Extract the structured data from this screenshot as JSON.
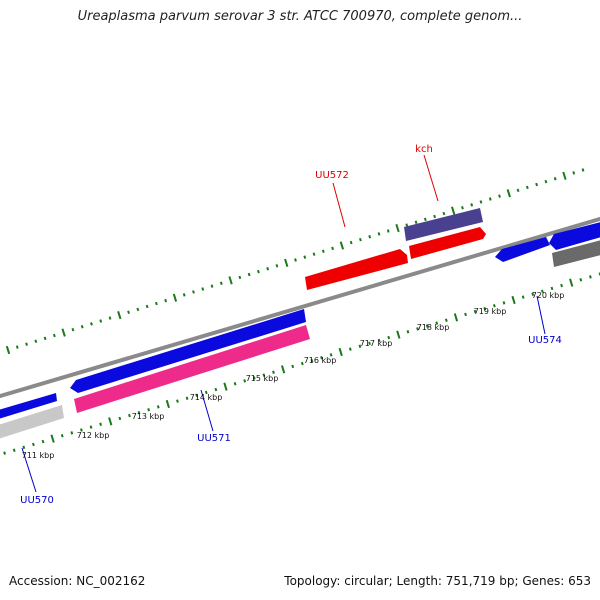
{
  "title": "Ureaplasma parvum serovar 3 str. ATCC 700970, complete genom...",
  "accession_line": "Accession: NC_002162",
  "summary_line": "Topology: circular; Length: 751,719 bp; Genes: 653",
  "tick_labels": [
    "711 kbp",
    "712 kbp",
    "713 kbp",
    "714 kbp",
    "715 kbp",
    "716 kbp",
    "717 kbp",
    "718 kbp",
    "719 kbp",
    "720 kbp"
  ],
  "gene_labels": [
    {
      "text": "UU570",
      "color": "#0000cc"
    },
    {
      "text": "UU571",
      "color": "#0000cc"
    },
    {
      "text": "UU572",
      "color": "#dd0000"
    },
    {
      "text": "kch",
      "color": "#dd0000"
    },
    {
      "text": "UU574",
      "color": "#0000cc"
    }
  ],
  "colors": {
    "tick_green": "#1a7a1a",
    "backbone": "#8a8a8a",
    "blue_gene": "#0a0adf",
    "red_gene": "#ee0000",
    "magenta_gene": "#ee2a8a",
    "purple_gene": "#4a4090",
    "grey_gene": "#c8c8c8",
    "darkgrey_gene": "#6a6a6a"
  }
}
